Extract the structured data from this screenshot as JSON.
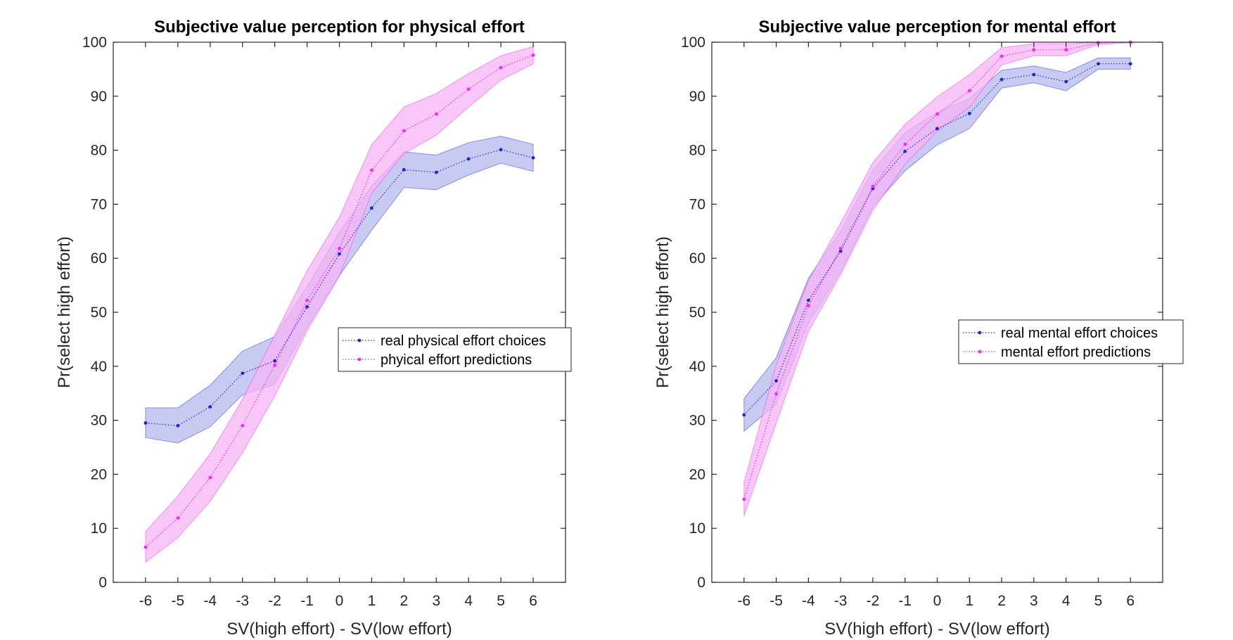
{
  "chart_data": [
    {
      "type": "line",
      "title": "Subjective value perception for physical effort",
      "xlabel": "SV(high effort) - SV(low effort)",
      "ylabel": "Pr(select high effort)",
      "xlim": [
        -7,
        7
      ],
      "ylim": [
        0,
        100
      ],
      "x": [
        -6,
        -5,
        -4,
        -3,
        -2,
        -1,
        0,
        1,
        2,
        3,
        4,
        5,
        6
      ],
      "xticks": [
        "-6",
        "-5",
        "-4",
        "-3",
        "-2",
        "-1",
        "0",
        "1",
        "2",
        "3",
        "4",
        "5",
        "6"
      ],
      "yticks": [
        "0",
        "10",
        "20",
        "30",
        "40",
        "50",
        "60",
        "70",
        "80",
        "90",
        "100"
      ],
      "legend_position": "middle-right",
      "series": [
        {
          "name": "real physical effort choices",
          "color": "#2222dd",
          "fill": "#b4b8ec",
          "values": [
            29.5,
            29,
            32.5,
            38.7,
            41,
            51,
            60.8,
            69.3,
            76.4,
            75.9,
            78.4,
            80.1,
            78.6
          ],
          "lower": [
            26.8,
            25.8,
            28.8,
            34.7,
            36.7,
            47.2,
            56.8,
            65.2,
            73.1,
            72.7,
            75.4,
            77.6,
            76.1
          ],
          "upper": [
            32.3,
            32.3,
            36.5,
            42.8,
            45.5,
            54.8,
            64.8,
            73.4,
            79.7,
            79.1,
            81.4,
            82.6,
            81.1
          ]
        },
        {
          "name": "phyical effort predictions",
          "color": "#ff22ff",
          "fill": "#f5b4f5",
          "values": [
            6.5,
            11.9,
            19.4,
            29,
            40.2,
            52.2,
            61.8,
            76.3,
            83.6,
            86.7,
            91.3,
            95.3,
            97.6
          ],
          "lower": [
            3.7,
            8.3,
            15,
            24,
            34.5,
            46.6,
            56.7,
            72,
            79.4,
            82.8,
            88,
            93,
            96
          ],
          "upper": [
            9.4,
            16,
            23.8,
            33.9,
            45.8,
            57.7,
            67.6,
            81,
            88,
            90.5,
            94.2,
            97.5,
            99.2
          ]
        }
      ]
    },
    {
      "type": "line",
      "title": "Subjective value perception for mental effort",
      "xlabel": "SV(high effort) - SV(low effort)",
      "ylabel": "Pr(select high effort)",
      "xlim": [
        -7,
        7
      ],
      "ylim": [
        0,
        100
      ],
      "x": [
        -6,
        -5,
        -4,
        -3,
        -2,
        -1,
        0,
        1,
        2,
        3,
        4,
        5,
        6
      ],
      "xticks": [
        "-6",
        "-5",
        "-4",
        "-3",
        "-2",
        "-1",
        "0",
        "1",
        "2",
        "3",
        "4",
        "5",
        "6"
      ],
      "yticks": [
        "0",
        "10",
        "20",
        "30",
        "40",
        "50",
        "60",
        "70",
        "80",
        "90",
        "100"
      ],
      "legend_position": "middle-right",
      "series": [
        {
          "name": "real mental effort choices",
          "color": "#2222dd",
          "fill": "#b4b8ec",
          "values": [
            31,
            37.3,
            52.2,
            61.3,
            72.9,
            79.8,
            84,
            86.8,
            93.1,
            94,
            92.7,
            96,
            96
          ],
          "lower": [
            28,
            33,
            48,
            57.5,
            69.5,
            76.2,
            81,
            84,
            91.5,
            92.5,
            91,
            95,
            95
          ],
          "upper": [
            34,
            41.6,
            56.3,
            65,
            76.3,
            83.3,
            87,
            89.6,
            94.8,
            95.6,
            94.4,
            97.1,
            97.1
          ]
        },
        {
          "name": "mental effort predictions",
          "color": "#ff22ff",
          "fill": "#f5b4f5",
          "values": [
            15.4,
            34.9,
            51.2,
            61.8,
            73.3,
            81.1,
            86.7,
            91,
            97.4,
            98.6,
            98.6,
            99.9,
            100
          ],
          "lower": [
            12.3,
            29.5,
            46.5,
            57,
            68.9,
            77.4,
            83.5,
            88,
            95.8,
            97.5,
            97.5,
            99.6,
            99.9
          ],
          "upper": [
            18.5,
            40.3,
            55.9,
            66.5,
            77.7,
            84.8,
            89.9,
            94,
            99,
            99.7,
            99.7,
            100,
            100
          ]
        }
      ]
    }
  ]
}
